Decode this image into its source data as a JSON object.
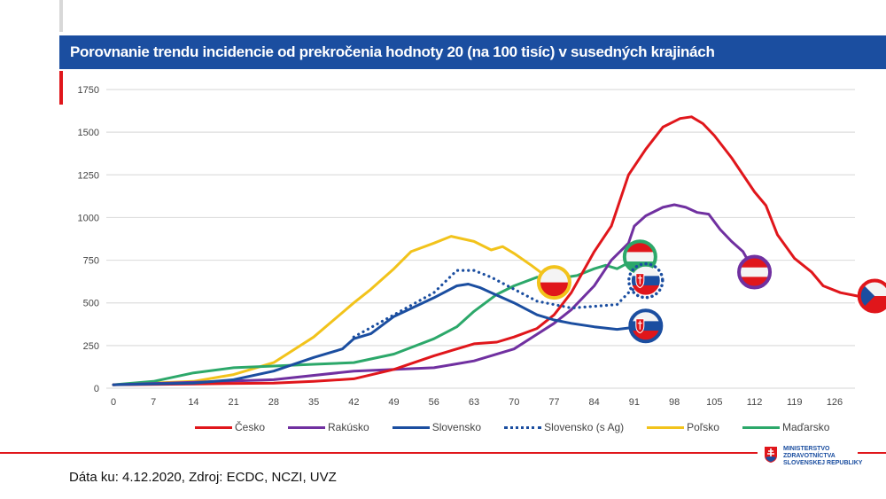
{
  "header": {
    "title": "Porovnanie trendu incidencie od prekročenia hodnoty 20 (na 100 tisíc) v susedných krajinách"
  },
  "footer": {
    "source": "Dáta ku: 4.12.2020, Zdroj: ECDC, NCZI, UVZ"
  },
  "logo": {
    "line1": "MINISTERSTVO",
    "line2": "ZDRAVOTNÍCTVA",
    "line3": "SLOVENSKEJ REPUBLIKY"
  },
  "colors": {
    "title_bar": "#1b4ea0",
    "accent_red": "#e0161b"
  },
  "chart_data": {
    "type": "line",
    "title": "",
    "xlabel": "",
    "ylabel": "",
    "xlim": [
      0,
      130
    ],
    "ylim": [
      0,
      1750
    ],
    "x_ticks": [
      0,
      7,
      14,
      21,
      28,
      35,
      42,
      49,
      56,
      63,
      70,
      77,
      84,
      91,
      98,
      105,
      112,
      119,
      126
    ],
    "y_ticks": [
      0,
      250,
      500,
      750,
      1000,
      1250,
      1500,
      1750
    ],
    "grid": "horizontal",
    "legend_position": "bottom",
    "series": [
      {
        "name": "Česko",
        "color": "#e0161b",
        "style": "solid",
        "flag": "czech-flag",
        "points": [
          [
            0,
            20
          ],
          [
            14,
            25
          ],
          [
            28,
            30
          ],
          [
            35,
            40
          ],
          [
            42,
            55
          ],
          [
            49,
            110
          ],
          [
            56,
            190
          ],
          [
            63,
            260
          ],
          [
            67,
            270
          ],
          [
            70,
            300
          ],
          [
            74,
            350
          ],
          [
            77,
            430
          ],
          [
            80,
            560
          ],
          [
            84,
            800
          ],
          [
            87,
            950
          ],
          [
            90,
            1250
          ],
          [
            93,
            1400
          ],
          [
            96,
            1530
          ],
          [
            99,
            1580
          ],
          [
            101,
            1590
          ],
          [
            103,
            1550
          ],
          [
            105,
            1480
          ],
          [
            108,
            1350
          ],
          [
            112,
            1150
          ],
          [
            114,
            1070
          ],
          [
            116,
            900
          ],
          [
            119,
            760
          ],
          [
            122,
            680
          ],
          [
            124,
            600
          ],
          [
            127,
            560
          ],
          [
            130,
            540
          ],
          [
            133,
            540
          ]
        ]
      },
      {
        "name": "Rakúsko",
        "color": "#7030a0",
        "style": "solid",
        "flag": "austria-flag",
        "points": [
          [
            0,
            20
          ],
          [
            28,
            50
          ],
          [
            42,
            100
          ],
          [
            56,
            120
          ],
          [
            63,
            160
          ],
          [
            70,
            230
          ],
          [
            77,
            380
          ],
          [
            80,
            460
          ],
          [
            84,
            600
          ],
          [
            87,
            750
          ],
          [
            90,
            850
          ],
          [
            91,
            950
          ],
          [
            93,
            1010
          ],
          [
            96,
            1060
          ],
          [
            98,
            1075
          ],
          [
            100,
            1060
          ],
          [
            102,
            1030
          ],
          [
            104,
            1020
          ],
          [
            106,
            930
          ],
          [
            108,
            860
          ],
          [
            110,
            800
          ],
          [
            112,
            680
          ]
        ]
      },
      {
        "name": "Slovensko",
        "color": "#1b4ea0",
        "style": "solid",
        "flag": "slovakia-flag",
        "points": [
          [
            0,
            20
          ],
          [
            14,
            30
          ],
          [
            21,
            50
          ],
          [
            28,
            100
          ],
          [
            35,
            180
          ],
          [
            40,
            230
          ],
          [
            42,
            290
          ],
          [
            45,
            320
          ],
          [
            49,
            420
          ],
          [
            56,
            530
          ],
          [
            60,
            600
          ],
          [
            62,
            610
          ],
          [
            64,
            590
          ],
          [
            66,
            560
          ],
          [
            70,
            500
          ],
          [
            74,
            430
          ],
          [
            77,
            400
          ],
          [
            80,
            380
          ],
          [
            84,
            360
          ],
          [
            88,
            345
          ],
          [
            93,
            365
          ]
        ]
      },
      {
        "name": "Slovensko (s Ag)",
        "color": "#1b4ea0",
        "style": "dotted",
        "flag": "slovakia-flag",
        "points": [
          [
            42,
            300
          ],
          [
            49,
            430
          ],
          [
            56,
            560
          ],
          [
            60,
            690
          ],
          [
            63,
            690
          ],
          [
            66,
            650
          ],
          [
            70,
            580
          ],
          [
            74,
            510
          ],
          [
            77,
            490
          ],
          [
            80,
            470
          ],
          [
            84,
            480
          ],
          [
            88,
            490
          ],
          [
            90,
            560
          ],
          [
            93,
            630
          ]
        ]
      },
      {
        "name": "Poľsko",
        "color": "#f2c31b",
        "style": "solid",
        "flag": "poland-flag",
        "points": [
          [
            0,
            20
          ],
          [
            14,
            40
          ],
          [
            21,
            80
          ],
          [
            28,
            150
          ],
          [
            35,
            300
          ],
          [
            42,
            500
          ],
          [
            45,
            580
          ],
          [
            49,
            700
          ],
          [
            52,
            800
          ],
          [
            56,
            850
          ],
          [
            59,
            890
          ],
          [
            63,
            860
          ],
          [
            66,
            810
          ],
          [
            68,
            830
          ],
          [
            70,
            790
          ],
          [
            73,
            720
          ],
          [
            77,
            620
          ]
        ]
      },
      {
        "name": "Maďarsko",
        "color": "#2ca86a",
        "style": "solid",
        "flag": "hungary-flag",
        "points": [
          [
            0,
            20
          ],
          [
            7,
            40
          ],
          [
            14,
            90
          ],
          [
            21,
            120
          ],
          [
            28,
            130
          ],
          [
            35,
            140
          ],
          [
            42,
            150
          ],
          [
            49,
            200
          ],
          [
            56,
            290
          ],
          [
            60,
            360
          ],
          [
            63,
            450
          ],
          [
            67,
            550
          ],
          [
            70,
            600
          ],
          [
            74,
            650
          ],
          [
            77,
            640
          ],
          [
            81,
            660
          ],
          [
            84,
            700
          ],
          [
            86,
            720
          ],
          [
            88,
            700
          ],
          [
            92,
            770
          ]
        ]
      }
    ]
  }
}
